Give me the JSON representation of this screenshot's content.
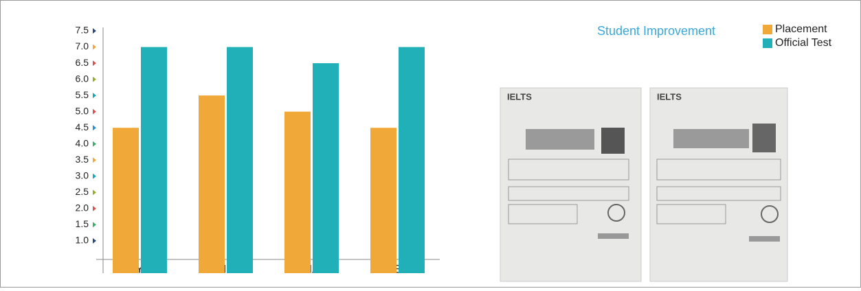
{
  "chart_data": {
    "type": "bar",
    "title": "Student Improvement",
    "categories": [
      "RYU",
      "KIM",
      "HA",
      "LEE"
    ],
    "series": [
      {
        "name": "Placement",
        "color": "#f0a838",
        "values": [
          4.5,
          5.5,
          5.0,
          4.5
        ]
      },
      {
        "name": "Official Test",
        "color": "#21b0b8",
        "values": [
          7.0,
          7.0,
          6.5,
          7.0
        ]
      }
    ],
    "ylim": [
      0,
      7.5
    ],
    "yticks": [
      {
        "value": 1,
        "label": "1.0"
      },
      1.5,
      {
        "value": 2,
        "label": "2.0"
      },
      2.5,
      {
        "value": 3,
        "label": "3.0"
      },
      3.5,
      {
        "value": 4,
        "label": "4.0"
      },
      4.5,
      {
        "value": 5,
        "label": "5.0"
      },
      5.5,
      {
        "value": 6,
        "label": "6.0"
      },
      6.5,
      {
        "value": 7,
        "label": "7.0"
      },
      7.5
    ],
    "ytick_marker_colors": [
      "#2a4a7a",
      "#3aae6a",
      "#d9534f",
      "#9aaa30",
      "#1aa6b8",
      "#f0a838",
      "#3aae6a",
      "#2a8fd0",
      "#d9534f",
      "#1aa6b8",
      "#9aaa30",
      "#d9534f",
      "#f0a838",
      "#2a4a7a"
    ],
    "legend": "top-right",
    "grid": false
  },
  "images": [
    {
      "title": "IELTS"
    },
    {
      "title": "IELTS"
    }
  ]
}
